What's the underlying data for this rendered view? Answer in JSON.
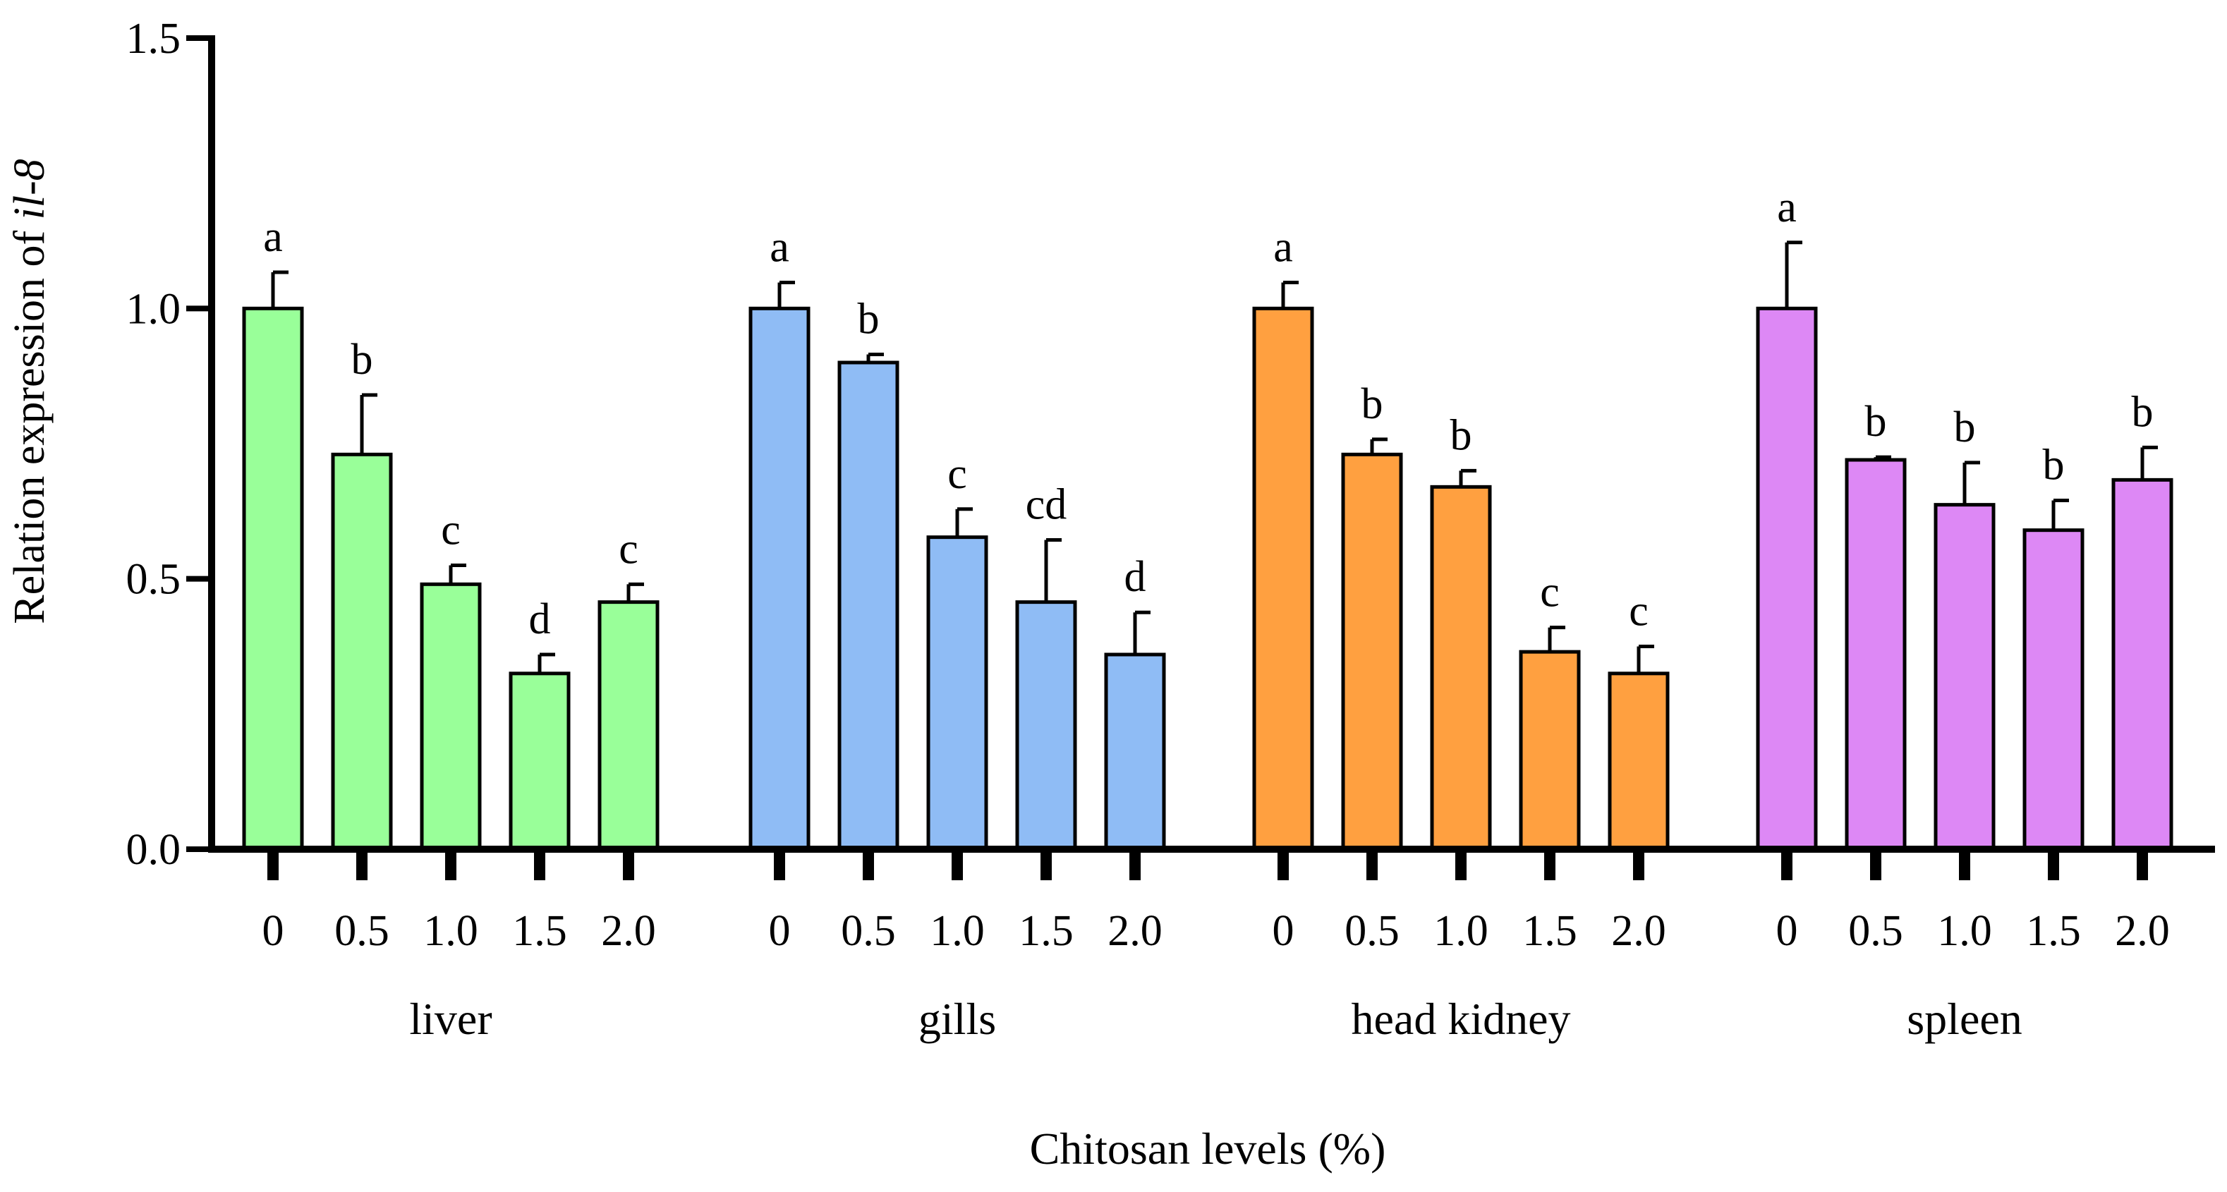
{
  "chart_data": {
    "type": "bar",
    "ylabel_prefix": "Relation expression of ",
    "ylabel_italic": "il-8",
    "xlabel": "Chitosan  levels  (%)",
    "ylim": [
      0,
      1.5
    ],
    "yticks": [
      0.0,
      0.5,
      1.0,
      1.5
    ],
    "ytick_labels": [
      "0.0",
      "0.5",
      "1.0",
      "1.5"
    ],
    "levels": [
      "0",
      "0.5",
      "1.0",
      "1.5",
      "2.0"
    ],
    "groups": [
      {
        "name": "liver",
        "color": "#99ff99",
        "values": [
          1.0,
          0.73,
          0.49,
          0.325,
          0.457
        ],
        "errors": [
          0.067,
          0.11,
          0.035,
          0.035,
          0.033
        ],
        "letters": [
          "a",
          "b",
          "c",
          "d",
          "c"
        ]
      },
      {
        "name": "gills",
        "color": "#8fbcf5",
        "values": [
          1.0,
          0.9,
          0.577,
          0.457,
          0.36
        ],
        "errors": [
          0.048,
          0.015,
          0.052,
          0.115,
          0.078
        ],
        "letters": [
          "a",
          "b",
          "c",
          "cd",
          "d"
        ]
      },
      {
        "name": "head kidney",
        "color": "#ffa040",
        "values": [
          1.0,
          0.73,
          0.67,
          0.365,
          0.325
        ],
        "errors": [
          0.048,
          0.028,
          0.03,
          0.045,
          0.05
        ],
        "letters": [
          "a",
          "b",
          "b",
          "c",
          "c"
        ]
      },
      {
        "name": "spleen",
        "color": "#dd88f5",
        "values": [
          1.0,
          0.72,
          0.637,
          0.59,
          0.683
        ],
        "errors": [
          0.122,
          0.005,
          0.078,
          0.055,
          0.06
        ],
        "letters": [
          "a",
          "b",
          "b",
          "b",
          "b"
        ]
      }
    ]
  }
}
